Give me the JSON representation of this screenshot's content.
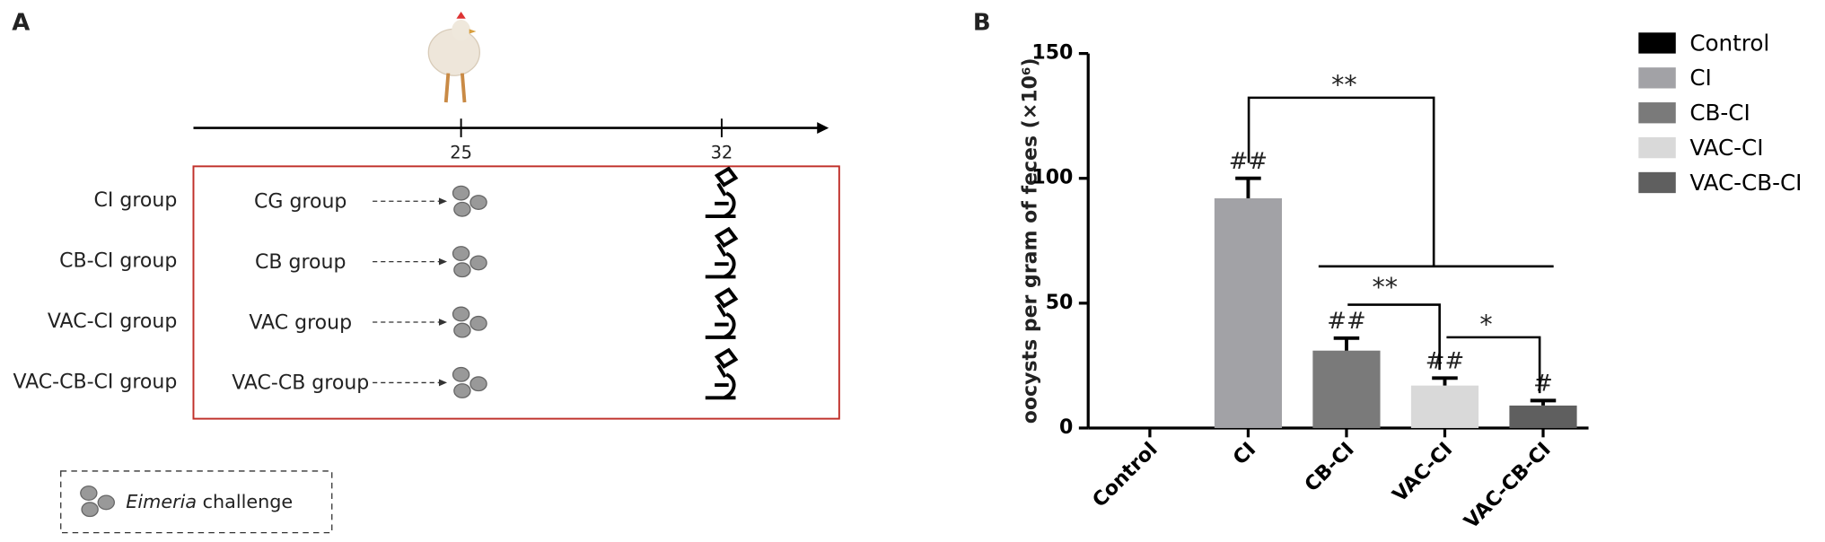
{
  "panel_a": {
    "label": "A",
    "timeline_ticks": [
      25,
      32
    ],
    "groups": [
      {
        "name": "CI group",
        "treatment": "CG group"
      },
      {
        "name": "CB-CI group",
        "treatment": "CB group"
      },
      {
        "name": "VAC-CI group",
        "treatment": "VAC group"
      },
      {
        "name": "VAC-CB-CI group",
        "treatment": "VAC-CB group"
      }
    ],
    "legend_italic": "Eimeria",
    "legend_text": "challenge"
  },
  "chart_data": {
    "type": "bar",
    "panel_label": "B",
    "y_label": "oocysts per gram of feces (×10⁶)",
    "categories": [
      "Control",
      "CI",
      "CB-CI",
      "VAC-CI",
      "VAC-CB-CI"
    ],
    "values": [
      0,
      92,
      31,
      17,
      9
    ],
    "errors": [
      0,
      8,
      5,
      3,
      2
    ],
    "colors": [
      "#000000",
      "#a2a2a6",
      "#7a7a7a",
      "#d9d9d9",
      "#5f5f5f"
    ],
    "bar_annotations": [
      null,
      "##",
      "##",
      "##",
      "#"
    ],
    "comparisons": [
      "**",
      "**",
      "*"
    ],
    "ylim": [
      0,
      150
    ],
    "yticks": [
      0,
      50,
      100,
      150
    ],
    "legend_position": "right"
  }
}
